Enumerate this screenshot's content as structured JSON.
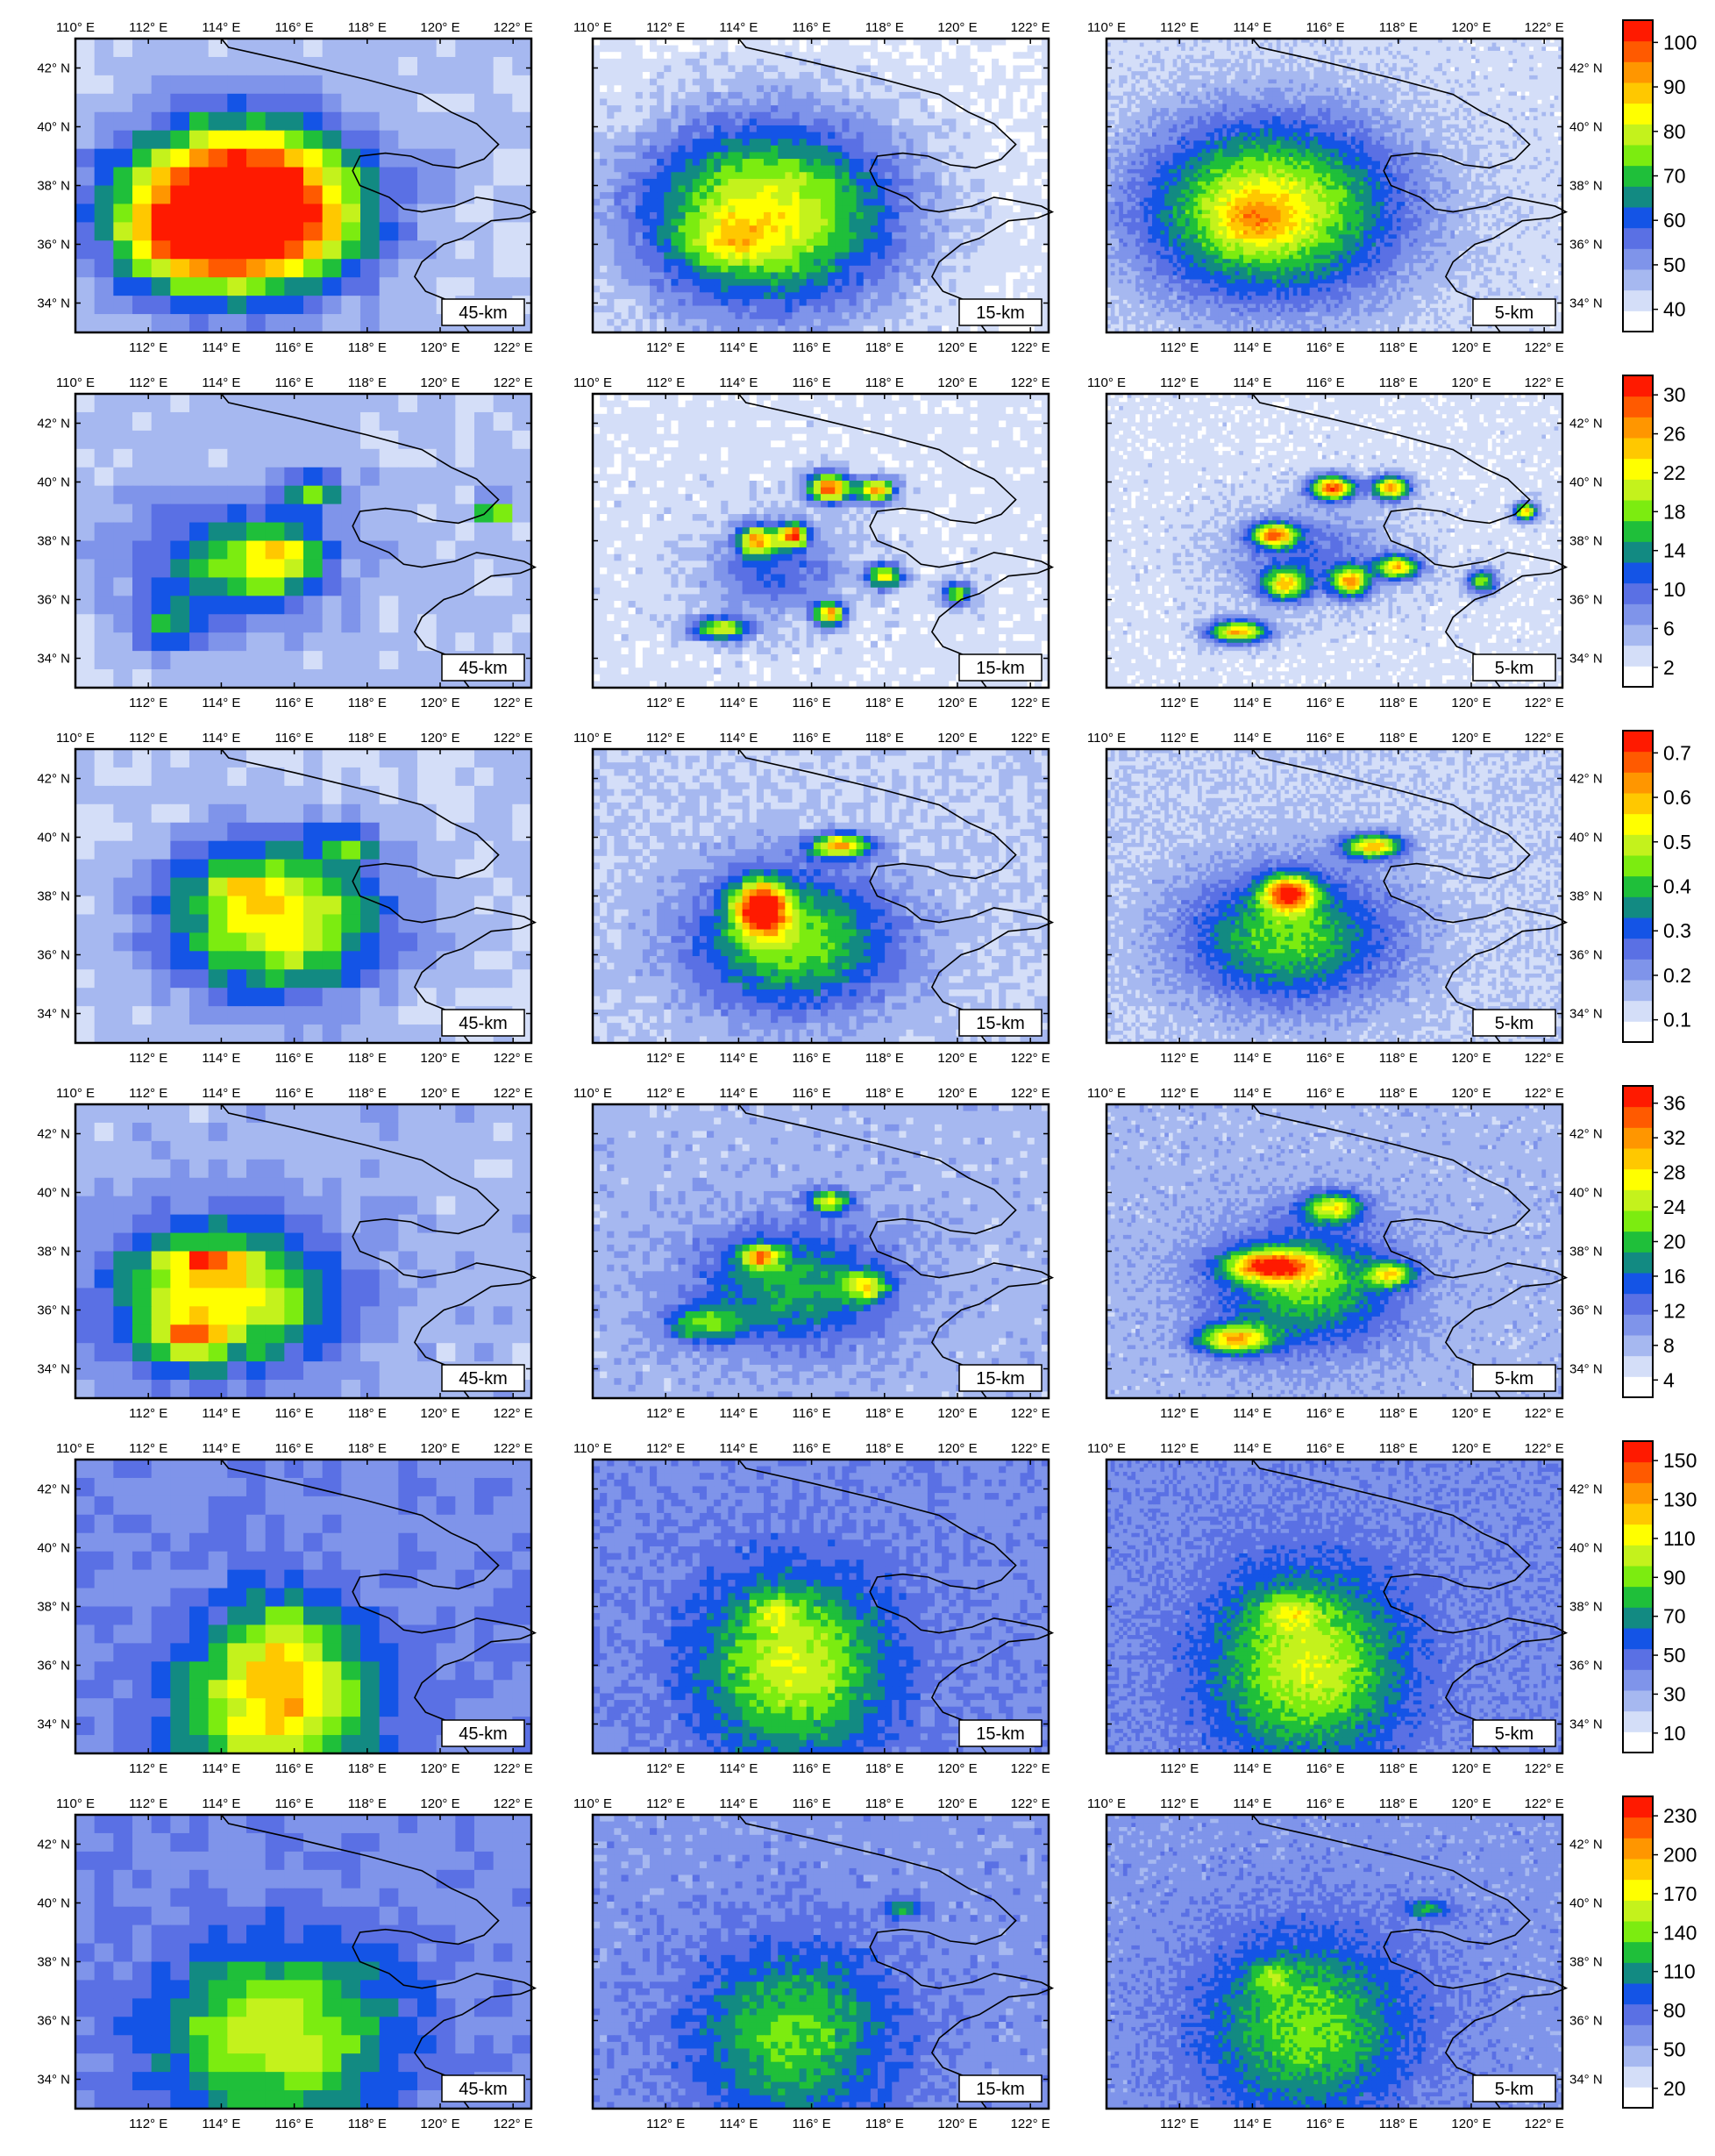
{
  "figure": {
    "resolution_labels": [
      "45-km",
      "15-km",
      "5-km"
    ],
    "lon_ticks": [
      "110° E",
      "112° E",
      "114° E",
      "116° E",
      "118° E",
      "120° E",
      "122° E"
    ],
    "lat_ticks": [
      "34° N",
      "36° N",
      "38° N",
      "40° N",
      "42° N"
    ]
  },
  "chart_data": [
    {
      "type": "heatmap",
      "panels": [
        "45-km",
        "15-km",
        "5-km"
      ],
      "colorbar_ticks": [
        40,
        50,
        60,
        70,
        80,
        90,
        100
      ],
      "colorbar_range": [
        35,
        105
      ],
      "fields": [
        {
          "blobs": [
            [
              114.5,
              37.2,
              3.0,
              2.6,
              88
            ],
            [
              113,
              36,
              1.5,
              1.3,
              15
            ]
          ],
          "base": 45
        },
        {
          "blobs": [
            [
              114.8,
              37,
              3.6,
              3.2,
              44
            ],
            [
              113.7,
              36.1,
              1.1,
              0.8,
              12
            ]
          ],
          "base": 40
        },
        {
          "blobs": [
            [
              114.5,
              37.2,
              3.5,
              3.0,
              42
            ],
            [
              114,
              36.8,
              1.0,
              0.9,
              12
            ]
          ],
          "base": 42
        }
      ]
    },
    {
      "type": "heatmap",
      "panels": [
        "45-km",
        "15-km",
        "5-km"
      ],
      "colorbar_ticks": [
        2,
        6,
        10,
        14,
        18,
        22,
        26,
        30
      ],
      "colorbar_range": [
        0,
        32
      ],
      "fields": [
        {
          "blobs": [
            [
              114.2,
              37.2,
              2.6,
              2.0,
              10
            ],
            [
              116.5,
              39.7,
              0.8,
              0.6,
              12
            ],
            [
              115.6,
              37.4,
              1.2,
              1.0,
              12
            ],
            [
              112.5,
              35,
              1.0,
              0.8,
              8
            ],
            [
              121.5,
              38.9,
              0.4,
              0.4,
              18
            ]
          ],
          "base": 5
        },
        {
          "blobs": [
            [
              115.5,
              38.2,
              0.4,
              0.4,
              24
            ],
            [
              116.5,
              39.8,
              0.6,
              0.5,
              26
            ],
            [
              117.8,
              39.7,
              0.5,
              0.4,
              24
            ],
            [
              114.5,
              38,
              0.5,
              0.5,
              20
            ],
            [
              118,
              36.8,
              0.5,
              0.4,
              20
            ],
            [
              113.5,
              35,
              0.8,
              0.4,
              18
            ],
            [
              116.5,
              35.5,
              0.4,
              0.4,
              22
            ],
            [
              120,
              36.2,
              0.4,
              0.4,
              16
            ],
            [
              115,
              37,
              1.8,
              1.5,
              8
            ]
          ],
          "base": 3
        },
        {
          "blobs": [
            [
              116.2,
              39.8,
              0.6,
              0.4,
              26
            ],
            [
              117.8,
              39.8,
              0.5,
              0.4,
              24
            ],
            [
              114.6,
              38.2,
              0.6,
              0.4,
              22
            ],
            [
              113.6,
              34.9,
              0.8,
              0.4,
              22
            ],
            [
              118,
              37.1,
              0.6,
              0.4,
              20
            ],
            [
              116.7,
              36.6,
              0.5,
              0.5,
              20
            ],
            [
              114.9,
              36.5,
              0.6,
              0.5,
              18
            ],
            [
              120.3,
              36.6,
              0.4,
              0.4,
              16
            ],
            [
              121.5,
              39.0,
              0.3,
              0.3,
              22
            ],
            [
              115.5,
              37.5,
              2.2,
              1.6,
              7
            ]
          ],
          "base": 3
        }
      ]
    },
    {
      "type": "heatmap",
      "panels": [
        "45-km",
        "15-km",
        "5-km"
      ],
      "colorbar_ticks": [
        0.1,
        0.2,
        0.3,
        0.4,
        0.5,
        0.6,
        0.7
      ],
      "colorbar_range": [
        0.05,
        0.75
      ],
      "fields": [
        {
          "blobs": [
            [
              115.5,
              37.2,
              3.0,
              2.6,
              0.42
            ],
            [
              117.5,
              39.8,
              0.8,
              0.5,
              0.2
            ],
            [
              114.5,
              38.3,
              0.8,
              0.6,
              0.15
            ]
          ],
          "base": 0.14
        },
        {
          "blobs": [
            [
              114.6,
              37.6,
              0.7,
              0.9,
              0.5
            ],
            [
              116.8,
              39.7,
              0.8,
              0.4,
              0.45
            ],
            [
              115.5,
              36.5,
              2.8,
              2.4,
              0.32
            ]
          ],
          "base": 0.14
        },
        {
          "blobs": [
            [
              115,
              38.1,
              0.7,
              0.6,
              0.45
            ],
            [
              117.3,
              39.7,
              0.8,
              0.4,
              0.45
            ],
            [
              115,
              36.6,
              2.8,
              2.2,
              0.3
            ]
          ],
          "base": 0.14
        }
      ]
    },
    {
      "type": "heatmap",
      "panels": [
        "45-km",
        "15-km",
        "5-km"
      ],
      "colorbar_ticks": [
        4,
        8,
        12,
        16,
        20,
        24,
        28,
        32,
        36
      ],
      "colorbar_range": [
        2,
        38
      ],
      "fields": [
        {
          "blobs": [
            [
              114,
              36.5,
              3.0,
              2.5,
              20
            ],
            [
              113.5,
              37.6,
              1.0,
              0.5,
              12
            ],
            [
              113,
              35,
              1.0,
              0.8,
              12
            ]
          ],
          "base": 8
        },
        {
          "blobs": [
            [
              114.6,
              37.8,
              0.5,
              0.4,
              18
            ],
            [
              116.5,
              39.7,
              0.6,
              0.4,
              16
            ],
            [
              117.5,
              36.8,
              0.6,
              0.5,
              14
            ],
            [
              113,
              35.5,
              1.0,
              0.6,
              12
            ],
            [
              115.5,
              36.8,
              2.6,
              2.0,
              12
            ]
          ],
          "base": 8
        },
        {
          "blobs": [
            [
              114.5,
              37.5,
              1.2,
              0.5,
              22
            ],
            [
              113.5,
              35,
              1.0,
              0.5,
              20
            ],
            [
              116.2,
              39.5,
              0.8,
              0.5,
              18
            ],
            [
              117.8,
              37.2,
              0.6,
              0.4,
              16
            ],
            [
              115.5,
              36.8,
              2.4,
              2.0,
              14
            ]
          ],
          "base": 8
        }
      ]
    },
    {
      "type": "heatmap",
      "panels": [
        "45-km",
        "15-km",
        "5-km"
      ],
      "colorbar_ticks": [
        10,
        30,
        50,
        70,
        90,
        110,
        130,
        150
      ],
      "colorbar_range": [
        0,
        160
      ],
      "fields": [
        {
          "blobs": [
            [
              115.5,
              34.5,
              2.6,
              2.6,
              80
            ],
            [
              115.8,
              37,
              1.5,
              2.0,
              30
            ]
          ],
          "base": 40
        },
        {
          "blobs": [
            [
              115.5,
              36,
              2.5,
              3.0,
              65
            ],
            [
              115,
              37.8,
              0.6,
              0.6,
              25
            ]
          ],
          "base": 40
        },
        {
          "blobs": [
            [
              115.5,
              36,
              2.5,
              3.0,
              65
            ],
            [
              115,
              37.8,
              0.8,
              0.6,
              30
            ]
          ],
          "base": 40
        }
      ]
    },
    {
      "type": "heatmap",
      "panels": [
        "45-km",
        "15-km",
        "5-km"
      ],
      "colorbar_ticks": [
        20,
        50,
        80,
        110,
        140,
        170,
        200,
        230
      ],
      "colorbar_range": [
        5,
        245
      ],
      "fields": [
        {
          "blobs": [
            [
              115.5,
              35.5,
              3.2,
              3.0,
              95
            ]
          ],
          "base": 65
        },
        {
          "blobs": [
            [
              115.5,
              35.5,
              2.8,
              3.0,
              75
            ],
            [
              118.5,
              39.8,
              0.5,
              0.3,
              60
            ]
          ],
          "base": 60
        },
        {
          "blobs": [
            [
              115.5,
              35.8,
              2.8,
              3.0,
              80
            ],
            [
              118.8,
              39.8,
              0.6,
              0.3,
              60
            ],
            [
              114.5,
              37.5,
              0.6,
              0.5,
              40
            ]
          ],
          "base": 60
        }
      ]
    }
  ]
}
